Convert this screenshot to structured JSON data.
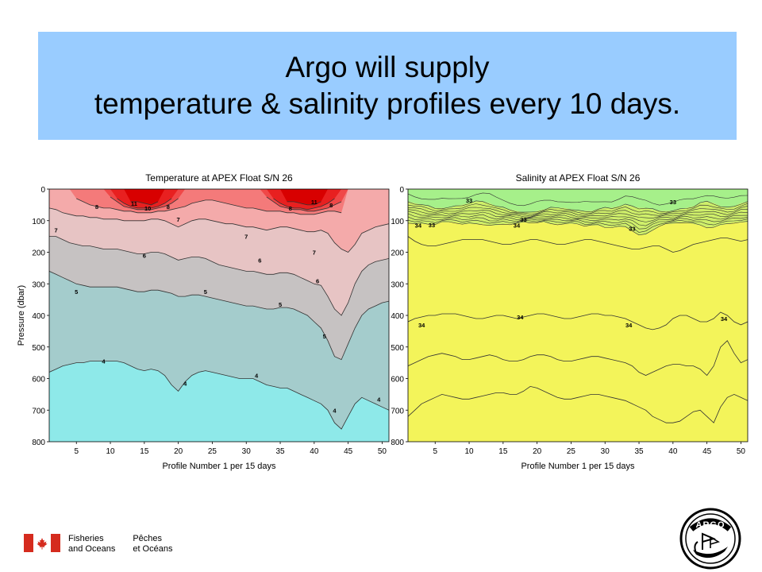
{
  "slide": {
    "title_line1": "Argo will supply",
    "title_line2": "temperature & salinity profiles every 10 days.",
    "banner_color": "#99ccff"
  },
  "footer": {
    "dept_en_1": "Fisheries",
    "dept_en_2": "and Oceans",
    "dept_fr_1": "Pêches",
    "dept_fr_2": "et Océans",
    "flag_color": "#d52b1e",
    "logo_text": "ARGO"
  },
  "chart_data": [
    {
      "type": "heatmap",
      "title": "Temperature at APEX Float S/N 26",
      "xlabel": "Profile Number 1 per 15 days",
      "ylabel": "Pressure (dbar)",
      "xlim": [
        1,
        51
      ],
      "ylim": [
        800,
        0
      ],
      "x_ticks": [
        5,
        10,
        15,
        20,
        25,
        30,
        35,
        40,
        45,
        50
      ],
      "y_ticks": [
        0,
        100,
        200,
        300,
        400,
        500,
        600,
        700,
        800
      ],
      "contours": [
        {
          "level": 11,
          "depth": [
            null,
            null,
            null,
            null,
            null,
            null,
            null,
            null,
            null,
            null,
            null,
            null,
            40,
            40,
            45,
            50,
            40,
            null,
            null,
            null,
            null,
            null,
            null,
            null,
            null,
            null,
            null,
            null,
            null,
            null,
            null,
            null,
            null,
            null,
            null,
            40,
            40,
            45,
            50,
            50,
            40,
            null,
            null,
            null,
            null,
            null,
            null,
            null,
            null,
            null,
            null
          ]
        },
        {
          "level": 10,
          "depth": [
            null,
            null,
            null,
            null,
            null,
            null,
            null,
            null,
            null,
            null,
            30,
            45,
            55,
            60,
            60,
            60,
            55,
            45,
            30,
            null,
            null,
            null,
            null,
            null,
            null,
            null,
            null,
            null,
            null,
            null,
            null,
            null,
            null,
            30,
            45,
            55,
            60,
            60,
            65,
            60,
            55,
            45,
            30,
            null,
            null,
            null,
            null,
            null,
            null,
            null,
            null
          ]
        },
        {
          "level": 9,
          "depth": [
            null,
            null,
            null,
            null,
            null,
            null,
            null,
            null,
            null,
            25,
            40,
            55,
            60,
            65,
            65,
            65,
            60,
            55,
            45,
            30,
            null,
            null,
            null,
            null,
            null,
            null,
            null,
            null,
            null,
            null,
            null,
            null,
            25,
            40,
            55,
            60,
            65,
            65,
            70,
            70,
            65,
            60,
            50,
            40,
            null,
            null,
            null,
            null,
            null,
            null,
            null
          ]
        },
        {
          "level": 8,
          "depth": [
            null,
            null,
            null,
            null,
            30,
            40,
            50,
            55,
            60,
            60,
            65,
            70,
            70,
            75,
            75,
            75,
            70,
            70,
            65,
            60,
            55,
            45,
            40,
            35,
            35,
            40,
            45,
            50,
            55,
            60,
            60,
            65,
            70,
            70,
            70,
            75,
            75,
            80,
            80,
            80,
            75,
            70,
            70,
            75,
            null,
            null,
            null,
            null,
            null,
            null,
            null
          ]
        },
        {
          "level": 7,
          "depth": [
            60,
            65,
            75,
            80,
            85,
            85,
            90,
            90,
            95,
            95,
            95,
            100,
            100,
            100,
            100,
            95,
            95,
            100,
            110,
            120,
            110,
            100,
            95,
            95,
            100,
            105,
            110,
            110,
            115,
            120,
            120,
            125,
            130,
            125,
            120,
            120,
            125,
            130,
            135,
            135,
            130,
            140,
            170,
            190,
            200,
            175,
            140,
            130,
            120,
            115,
            110
          ]
        },
        {
          "level": 6,
          "depth": [
            150,
            150,
            160,
            170,
            175,
            180,
            180,
            185,
            190,
            190,
            190,
            195,
            200,
            205,
            205,
            200,
            200,
            205,
            215,
            225,
            220,
            215,
            215,
            220,
            230,
            240,
            245,
            250,
            255,
            260,
            260,
            265,
            270,
            270,
            265,
            265,
            270,
            280,
            290,
            300,
            305,
            340,
            380,
            400,
            360,
            300,
            260,
            240,
            230,
            225,
            220
          ]
        },
        {
          "level": 5,
          "depth": [
            260,
            270,
            280,
            290,
            300,
            305,
            310,
            310,
            310,
            310,
            310,
            315,
            320,
            325,
            325,
            320,
            320,
            325,
            330,
            340,
            340,
            335,
            335,
            340,
            345,
            350,
            355,
            360,
            365,
            370,
            370,
            375,
            380,
            380,
            375,
            375,
            380,
            390,
            400,
            420,
            440,
            480,
            530,
            540,
            490,
            440,
            400,
            380,
            370,
            360,
            355
          ]
        },
        {
          "level": 4,
          "depth": [
            580,
            570,
            560,
            555,
            550,
            550,
            545,
            545,
            545,
            545,
            545,
            550,
            560,
            570,
            575,
            570,
            575,
            590,
            620,
            640,
            610,
            590,
            580,
            575,
            580,
            585,
            590,
            595,
            600,
            600,
            600,
            610,
            620,
            625,
            630,
            630,
            640,
            650,
            660,
            670,
            680,
            700,
            740,
            760,
            720,
            680,
            660,
            670,
            680,
            690,
            700
          ]
        }
      ],
      "depth_labels": [
        {
          "x": 13.5,
          "y": 45,
          "text": "11"
        },
        {
          "x": 15.5,
          "y": 60,
          "text": "10"
        },
        {
          "x": 18.5,
          "y": 55,
          "text": "8"
        },
        {
          "x": 8,
          "y": 55,
          "text": "8"
        },
        {
          "x": 40,
          "y": 40,
          "text": "11"
        },
        {
          "x": 36.5,
          "y": 60,
          "text": "8"
        },
        {
          "x": 42.5,
          "y": 50,
          "text": "8"
        },
        {
          "x": 20,
          "y": 95,
          "text": "7"
        },
        {
          "x": 2,
          "y": 130,
          "text": "7"
        },
        {
          "x": 30,
          "y": 150,
          "text": "7"
        },
        {
          "x": 40,
          "y": 200,
          "text": "7"
        },
        {
          "x": 15,
          "y": 210,
          "text": "6"
        },
        {
          "x": 32,
          "y": 225,
          "text": "6"
        },
        {
          "x": 40.5,
          "y": 290,
          "text": "6"
        },
        {
          "x": 5,
          "y": 325,
          "text": "5"
        },
        {
          "x": 24,
          "y": 325,
          "text": "5"
        },
        {
          "x": 35,
          "y": 365,
          "text": "5"
        },
        {
          "x": 41.5,
          "y": 465,
          "text": "5"
        },
        {
          "x": 9,
          "y": 545,
          "text": "4"
        },
        {
          "x": 21,
          "y": 615,
          "text": "4"
        },
        {
          "x": 31.5,
          "y": 590,
          "text": "4"
        },
        {
          "x": 43,
          "y": 700,
          "text": "4"
        },
        {
          "x": 49.5,
          "y": 665,
          "text": "4"
        }
      ]
    },
    {
      "type": "heatmap",
      "title": "Salinity at APEX Float S/N 26",
      "xlabel": "Profile Number 1 per 15 days",
      "ylabel": "",
      "xlim": [
        1,
        51
      ],
      "ylim": [
        800,
        0
      ],
      "x_ticks": [
        5,
        10,
        15,
        20,
        25,
        30,
        35,
        40,
        45,
        50
      ],
      "y_ticks": [
        0,
        100,
        200,
        300,
        400,
        500,
        600,
        700,
        800
      ],
      "halocline": {
        "top_depth": [
          40,
          45,
          50,
          55,
          60,
          60,
          60,
          55,
          50,
          45,
          40,
          40,
          45,
          55,
          60,
          65,
          70,
          75,
          75,
          70,
          65,
          60,
          60,
          60,
          65,
          70,
          70,
          70,
          65,
          60,
          60,
          55,
          50,
          55,
          60,
          60,
          65,
          70,
          70,
          70,
          65,
          60,
          55,
          45,
          40,
          45,
          55,
          60,
          55,
          45,
          40
        ],
        "bottom_depth": [
          105,
          110,
          110,
          110,
          110,
          105,
          105,
          105,
          110,
          110,
          110,
          110,
          115,
          115,
          110,
          110,
          110,
          105,
          105,
          105,
          105,
          110,
          110,
          110,
          110,
          110,
          115,
          115,
          115,
          120,
          120,
          120,
          120,
          130,
          145,
          145,
          130,
          115,
          110,
          110,
          105,
          105,
          110,
          115,
          120,
          120,
          115,
          110,
          105,
          105,
          105
        ]
      },
      "contours": [
        {
          "level": 34.1,
          "depth": [
            150,
            165,
            175,
            180,
            180,
            175,
            170,
            165,
            160,
            160,
            160,
            160,
            165,
            170,
            175,
            175,
            170,
            165,
            160,
            160,
            165,
            170,
            175,
            175,
            170,
            165,
            160,
            160,
            165,
            170,
            175,
            180,
            185,
            190,
            190,
            185,
            180,
            180,
            190,
            200,
            195,
            185,
            175,
            170,
            165,
            160,
            155,
            155,
            160,
            165,
            160
          ]
        },
        {
          "level": 34.2,
          "depth": [
            420,
            410,
            405,
            400,
            400,
            395,
            395,
            395,
            400,
            405,
            410,
            410,
            405,
            400,
            400,
            405,
            410,
            405,
            400,
            395,
            395,
            400,
            405,
            410,
            410,
            405,
            400,
            395,
            395,
            400,
            400,
            405,
            410,
            420,
            430,
            440,
            445,
            440,
            430,
            410,
            400,
            400,
            410,
            420,
            420,
            410,
            390,
            400,
            420,
            430,
            420
          ]
        },
        {
          "level": 34.3,
          "depth": [
            560,
            550,
            540,
            530,
            525,
            520,
            525,
            530,
            540,
            540,
            535,
            530,
            525,
            530,
            540,
            545,
            545,
            540,
            530,
            525,
            525,
            530,
            540,
            545,
            545,
            540,
            535,
            530,
            530,
            535,
            540,
            545,
            550,
            560,
            580,
            590,
            580,
            570,
            560,
            555,
            555,
            560,
            560,
            570,
            590,
            560,
            500,
            480,
            520,
            550,
            540
          ]
        },
        {
          "level": 34.4,
          "depth": [
            720,
            700,
            680,
            670,
            660,
            650,
            655,
            660,
            665,
            665,
            660,
            655,
            650,
            645,
            645,
            650,
            650,
            640,
            625,
            630,
            640,
            650,
            660,
            665,
            665,
            660,
            655,
            650,
            650,
            655,
            660,
            665,
            670,
            680,
            690,
            700,
            720,
            730,
            740,
            740,
            735,
            720,
            705,
            700,
            720,
            740,
            690,
            660,
            650,
            660,
            670
          ]
        }
      ],
      "depth_labels": [
        {
          "x": 10,
          "y": 35,
          "text": "33"
        },
        {
          "x": 18,
          "y": 95,
          "text": "33"
        },
        {
          "x": 2.5,
          "y": 115,
          "text": "34"
        },
        {
          "x": 4.5,
          "y": 113,
          "text": "33"
        },
        {
          "x": 17,
          "y": 115,
          "text": "34"
        },
        {
          "x": 34,
          "y": 125,
          "text": "33"
        },
        {
          "x": 40,
          "y": 40,
          "text": "33"
        },
        {
          "x": 3,
          "y": 430,
          "text": "34"
        },
        {
          "x": 17.5,
          "y": 405,
          "text": "34"
        },
        {
          "x": 33.5,
          "y": 430,
          "text": "34"
        },
        {
          "x": 47.5,
          "y": 410,
          "text": "34"
        }
      ]
    }
  ]
}
